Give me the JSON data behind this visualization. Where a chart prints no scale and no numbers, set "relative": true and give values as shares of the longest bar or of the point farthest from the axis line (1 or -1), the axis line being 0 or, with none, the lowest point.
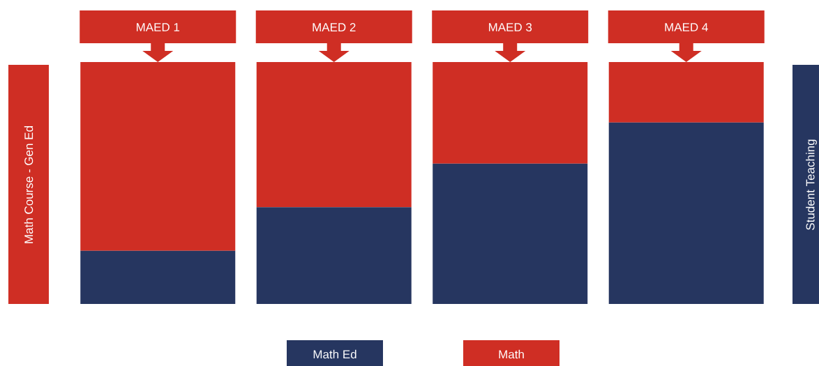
{
  "chart_data": {
    "type": "bar",
    "stacked": true,
    "relative": true,
    "categories": [
      "MAED 1",
      "MAED 2",
      "MAED 3",
      "MAED 4"
    ],
    "series": [
      {
        "name": "Math Ed",
        "color": "#263660",
        "values": [
          0.22,
          0.4,
          0.58,
          0.75
        ]
      },
      {
        "name": "Math",
        "color": "#cf2e24",
        "values": [
          0.78,
          0.6,
          0.42,
          0.25
        ]
      }
    ],
    "annotations": [
      "Math Course - Gen Ed",
      "Student Teaching"
    ],
    "legend": "bottom"
  }
}
